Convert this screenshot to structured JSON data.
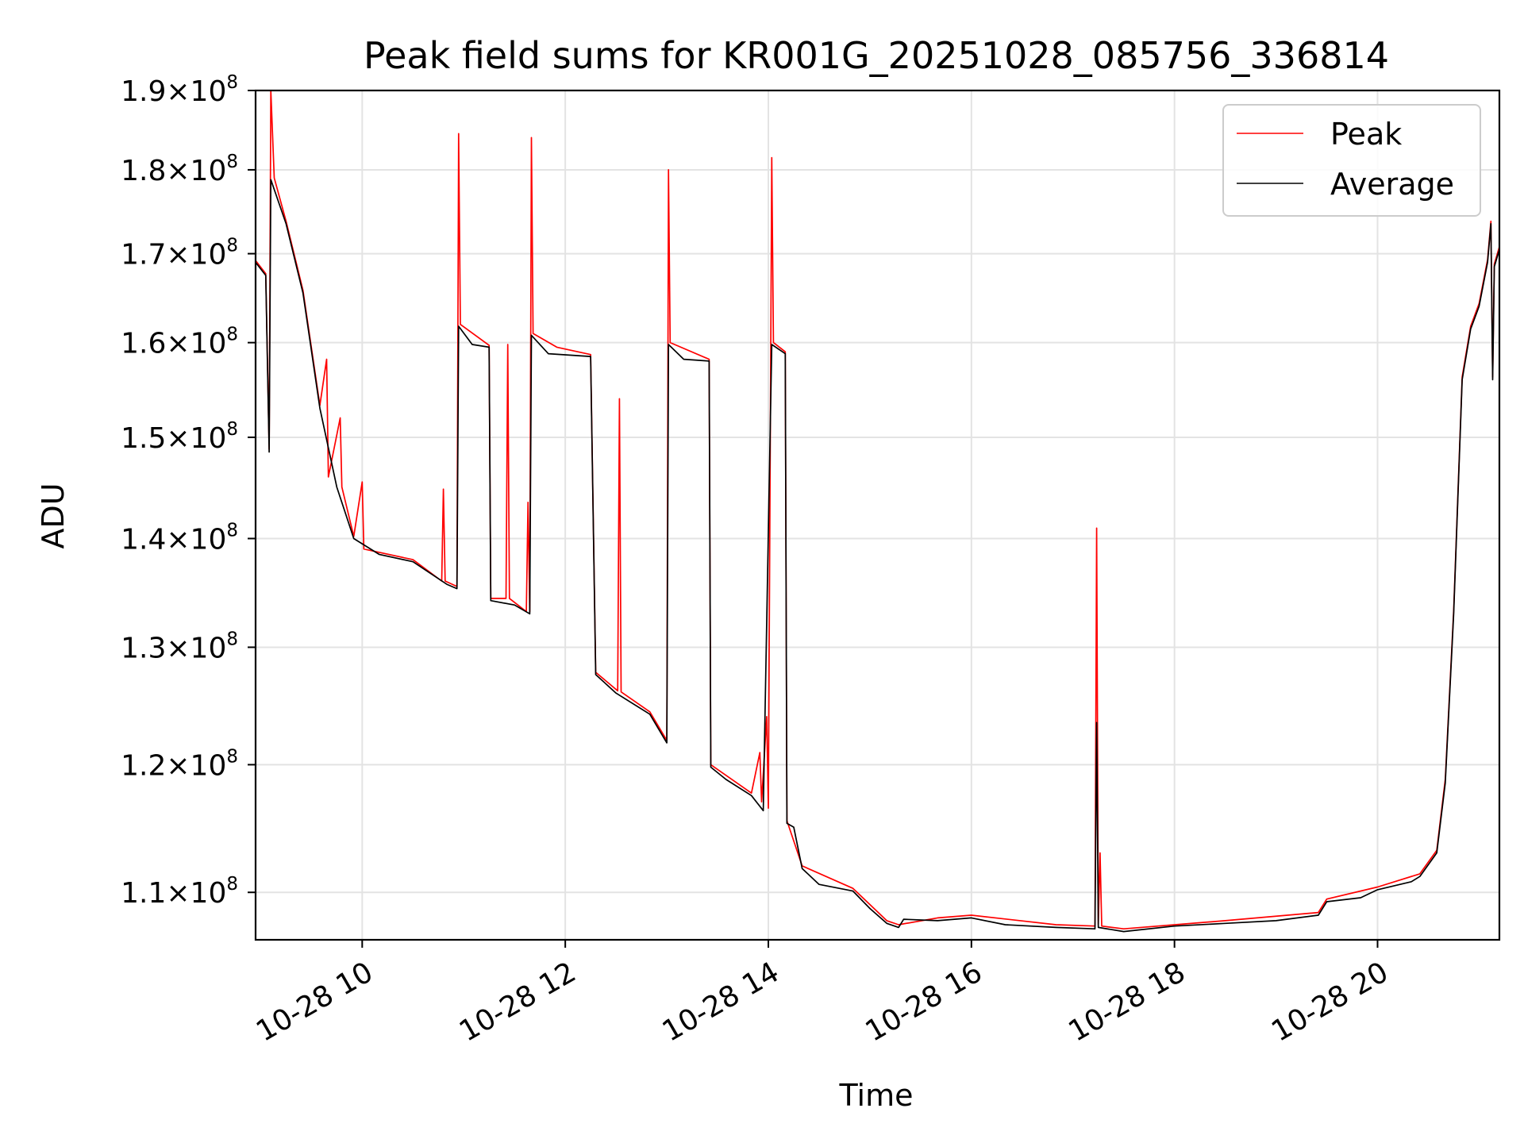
{
  "chart_data": {
    "type": "line",
    "title": "Peak field sums for KR001G_20251028_085756_336814",
    "xlabel": "Time",
    "ylabel": "ADU",
    "yscale": "log",
    "grid": true,
    "legend_position": "top-right",
    "x_range": [
      "2025-10-28 08:57",
      "2025-10-28 21:12"
    ],
    "ylim": [
      106500000,
      190000000
    ],
    "x_ticks": [
      {
        "value": "2025-10-28 10:00",
        "label": "10-28 10"
      },
      {
        "value": "2025-10-28 12:00",
        "label": "10-28 12"
      },
      {
        "value": "2025-10-28 14:00",
        "label": "10-28 14"
      },
      {
        "value": "2025-10-28 16:00",
        "label": "10-28 16"
      },
      {
        "value": "2025-10-28 18:00",
        "label": "10-28 18"
      },
      {
        "value": "2025-10-28 20:00",
        "label": "10-28 20"
      }
    ],
    "y_ticks": [
      {
        "value": 110000000,
        "mantissa": "1.1",
        "base": "10",
        "exponent": "8"
      },
      {
        "value": 120000000,
        "mantissa": "1.2",
        "base": "10",
        "exponent": "8"
      },
      {
        "value": 130000000,
        "mantissa": "1.3",
        "base": "10",
        "exponent": "8"
      },
      {
        "value": 140000000,
        "mantissa": "1.4",
        "base": "10",
        "exponent": "8"
      },
      {
        "value": 150000000,
        "mantissa": "1.5",
        "base": "10",
        "exponent": "8"
      },
      {
        "value": 160000000,
        "mantissa": "1.6",
        "base": "10",
        "exponent": "8"
      },
      {
        "value": 170000000,
        "mantissa": "1.7",
        "base": "10",
        "exponent": "8"
      },
      {
        "value": 180000000,
        "mantissa": "1.8",
        "base": "10",
        "exponent": "8"
      },
      {
        "value": 190000000,
        "mantissa": "1.9",
        "base": "10",
        "exponent": "8"
      }
    ],
    "series": [
      {
        "name": "Average",
        "color": "#000000",
        "points": [
          [
            "2025-10-28 08:57",
            169000000
          ],
          [
            "2025-10-28 09:03",
            167500000
          ],
          [
            "2025-10-28 09:05",
            148500000
          ],
          [
            "2025-10-28 09:06",
            178800000
          ],
          [
            "2025-10-28 09:15",
            173500000
          ],
          [
            "2025-10-28 09:25",
            165500000
          ],
          [
            "2025-10-28 09:35",
            153000000
          ],
          [
            "2025-10-28 09:45",
            145000000
          ],
          [
            "2025-10-28 09:55",
            140000000
          ],
          [
            "2025-10-28 10:10",
            138500000
          ],
          [
            "2025-10-28 10:30",
            137800000
          ],
          [
            "2025-10-28 10:50",
            135700000
          ],
          [
            "2025-10-28 10:56",
            135300000
          ],
          [
            "2025-10-28 10:57",
            161800000
          ],
          [
            "2025-10-28 11:05",
            159800000
          ],
          [
            "2025-10-28 11:15",
            159500000
          ],
          [
            "2025-10-28 11:16",
            134200000
          ],
          [
            "2025-10-28 11:30",
            133800000
          ],
          [
            "2025-10-28 11:39",
            133000000
          ],
          [
            "2025-10-28 11:40",
            160800000
          ],
          [
            "2025-10-28 11:50",
            158800000
          ],
          [
            "2025-10-28 12:15",
            158500000
          ],
          [
            "2025-10-28 12:18",
            127600000
          ],
          [
            "2025-10-28 12:30",
            126000000
          ],
          [
            "2025-10-28 12:50",
            124200000
          ],
          [
            "2025-10-28 13:00",
            121800000
          ],
          [
            "2025-10-28 13:01",
            159800000
          ],
          [
            "2025-10-28 13:10",
            158200000
          ],
          [
            "2025-10-28 13:25",
            158000000
          ],
          [
            "2025-10-28 13:26",
            119800000
          ],
          [
            "2025-10-28 13:35",
            118800000
          ],
          [
            "2025-10-28 13:50",
            117500000
          ],
          [
            "2025-10-28 13:57",
            116300000
          ],
          [
            "2025-10-28 14:02",
            159800000
          ],
          [
            "2025-10-28 14:10",
            158800000
          ],
          [
            "2025-10-28 14:11",
            115300000
          ],
          [
            "2025-10-28 14:15",
            115000000
          ],
          [
            "2025-10-28 14:20",
            111800000
          ],
          [
            "2025-10-28 14:30",
            110600000
          ],
          [
            "2025-10-28 14:50",
            110100000
          ],
          [
            "2025-10-28 15:00",
            108800000
          ],
          [
            "2025-10-28 15:10",
            107700000
          ],
          [
            "2025-10-28 15:17",
            107400000
          ],
          [
            "2025-10-28 15:20",
            108000000
          ],
          [
            "2025-10-28 15:40",
            107900000
          ],
          [
            "2025-10-28 16:00",
            108100000
          ],
          [
            "2025-10-28 16:20",
            107600000
          ],
          [
            "2025-10-28 16:50",
            107400000
          ],
          [
            "2025-10-28 17:13",
            107300000
          ],
          [
            "2025-10-28 17:14",
            123500000
          ],
          [
            "2025-10-28 17:15",
            107400000
          ],
          [
            "2025-10-28 17:30",
            107100000
          ],
          [
            "2025-10-28 18:00",
            107500000
          ],
          [
            "2025-10-28 18:30",
            107700000
          ],
          [
            "2025-10-28 19:00",
            107900000
          ],
          [
            "2025-10-28 19:25",
            108300000
          ],
          [
            "2025-10-28 19:30",
            109300000
          ],
          [
            "2025-10-28 19:50",
            109600000
          ],
          [
            "2025-10-28 20:00",
            110200000
          ],
          [
            "2025-10-28 20:20",
            110800000
          ],
          [
            "2025-10-28 20:25",
            111200000
          ],
          [
            "2025-10-28 20:35",
            113000000
          ],
          [
            "2025-10-28 20:40",
            118500000
          ],
          [
            "2025-10-28 20:45",
            133000000
          ],
          [
            "2025-10-28 20:50",
            156000000
          ],
          [
            "2025-10-28 20:55",
            161500000
          ],
          [
            "2025-10-28 21:00",
            164000000
          ],
          [
            "2025-10-28 21:05",
            169000000
          ],
          [
            "2025-10-28 21:07",
            173500000
          ],
          [
            "2025-10-28 21:08",
            156000000
          ],
          [
            "2025-10-28 21:09",
            168500000
          ],
          [
            "2025-10-28 21:12",
            170500000
          ]
        ]
      },
      {
        "name": "Peak",
        "color": "#ff0000",
        "points": [
          [
            "2025-10-28 08:57",
            169200000
          ],
          [
            "2025-10-28 09:03",
            167700000
          ],
          [
            "2025-10-28 09:05",
            148800000
          ],
          [
            "2025-10-28 09:06",
            190000000
          ],
          [
            "2025-10-28 09:08",
            179000000
          ],
          [
            "2025-10-28 09:15",
            173800000
          ],
          [
            "2025-10-28 09:25",
            165800000
          ],
          [
            "2025-10-28 09:35",
            153300000
          ],
          [
            "2025-10-28 09:39",
            158200000
          ],
          [
            "2025-10-28 09:40",
            146000000
          ],
          [
            "2025-10-28 09:47",
            152000000
          ],
          [
            "2025-10-28 09:48",
            145000000
          ],
          [
            "2025-10-28 09:55",
            140200000
          ],
          [
            "2025-10-28 10:00",
            145500000
          ],
          [
            "2025-10-28 10:01",
            139000000
          ],
          [
            "2025-10-28 10:30",
            138000000
          ],
          [
            "2025-10-28 10:47",
            136000000
          ],
          [
            "2025-10-28 10:48",
            144800000
          ],
          [
            "2025-10-28 10:49",
            136000000
          ],
          [
            "2025-10-28 10:56",
            135500000
          ],
          [
            "2025-10-28 10:57",
            184500000
          ],
          [
            "2025-10-28 10:58",
            162000000
          ],
          [
            "2025-10-28 11:15",
            159700000
          ],
          [
            "2025-10-28 11:16",
            134400000
          ],
          [
            "2025-10-28 11:25",
            134400000
          ],
          [
            "2025-10-28 11:26",
            159800000
          ],
          [
            "2025-10-28 11:27",
            134400000
          ],
          [
            "2025-10-28 11:37",
            133200000
          ],
          [
            "2025-10-28 11:38",
            143500000
          ],
          [
            "2025-10-28 11:39",
            133200000
          ],
          [
            "2025-10-28 11:40",
            184000000
          ],
          [
            "2025-10-28 11:41",
            161000000
          ],
          [
            "2025-10-28 11:55",
            159500000
          ],
          [
            "2025-10-28 12:15",
            158700000
          ],
          [
            "2025-10-28 12:18",
            127800000
          ],
          [
            "2025-10-28 12:31",
            126200000
          ],
          [
            "2025-10-28 12:32",
            154000000
          ],
          [
            "2025-10-28 12:33",
            126100000
          ],
          [
            "2025-10-28 12:50",
            124400000
          ],
          [
            "2025-10-28 13:00",
            122000000
          ],
          [
            "2025-10-28 13:01",
            180000000
          ],
          [
            "2025-10-28 13:02",
            160000000
          ],
          [
            "2025-10-28 13:25",
            158200000
          ],
          [
            "2025-10-28 13:26",
            120000000
          ],
          [
            "2025-10-28 13:50",
            117700000
          ],
          [
            "2025-10-28 13:55",
            121000000
          ],
          [
            "2025-10-28 13:56",
            117000000
          ],
          [
            "2025-10-28 13:59",
            124000000
          ],
          [
            "2025-10-28 14:00",
            116500000
          ],
          [
            "2025-10-28 14:02",
            181500000
          ],
          [
            "2025-10-28 14:03",
            160000000
          ],
          [
            "2025-10-28 14:10",
            159000000
          ],
          [
            "2025-10-28 14:11",
            115500000
          ],
          [
            "2025-10-28 14:20",
            112000000
          ],
          [
            "2025-10-28 14:50",
            110300000
          ],
          [
            "2025-10-28 15:10",
            107900000
          ],
          [
            "2025-10-28 15:17",
            107600000
          ],
          [
            "2025-10-28 15:40",
            108100000
          ],
          [
            "2025-10-28 16:00",
            108300000
          ],
          [
            "2025-10-28 16:50",
            107600000
          ],
          [
            "2025-10-28 17:13",
            107500000
          ],
          [
            "2025-10-28 17:14",
            141000000
          ],
          [
            "2025-10-28 17:15",
            107600000
          ],
          [
            "2025-10-28 17:16",
            113000000
          ],
          [
            "2025-10-28 17:17",
            107500000
          ],
          [
            "2025-10-28 17:30",
            107300000
          ],
          [
            "2025-10-28 18:30",
            107900000
          ],
          [
            "2025-10-28 19:25",
            108500000
          ],
          [
            "2025-10-28 19:30",
            109500000
          ],
          [
            "2025-10-28 20:00",
            110400000
          ],
          [
            "2025-10-28 20:25",
            111400000
          ],
          [
            "2025-10-28 20:35",
            113200000
          ],
          [
            "2025-10-28 20:40",
            118800000
          ],
          [
            "2025-10-28 20:45",
            133300000
          ],
          [
            "2025-10-28 20:50",
            156300000
          ],
          [
            "2025-10-28 20:55",
            161800000
          ],
          [
            "2025-10-28 21:00",
            164300000
          ],
          [
            "2025-10-28 21:05",
            169300000
          ],
          [
            "2025-10-28 21:07",
            173800000
          ],
          [
            "2025-10-28 21:08",
            156300000
          ],
          [
            "2025-10-28 21:09",
            168800000
          ],
          [
            "2025-10-28 21:12",
            170800000
          ]
        ]
      }
    ],
    "legend": [
      {
        "label": "Peak",
        "color": "#ff0000"
      },
      {
        "label": "Average",
        "color": "#000000"
      }
    ]
  }
}
